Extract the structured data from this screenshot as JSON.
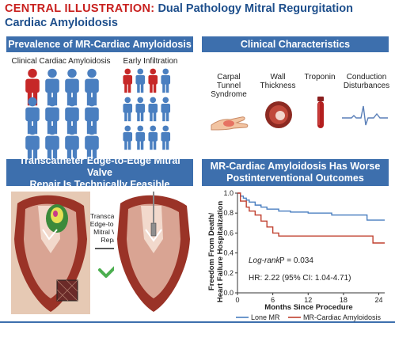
{
  "header": {
    "keyword": "CENTRAL ILLUSTRATION:",
    "title_line1": "Dual Pathology Mitral Regurgitation",
    "title_line2": "Cardiac Amyloidosis"
  },
  "prevalence": {
    "title": "Prevalence of MR-Cardiac Amyloidosis",
    "clinical_label": "Clinical Cardiac Amyloidosis",
    "early_label": "Early Infiltration",
    "colors": {
      "affected": "#c62828",
      "unaffected": "#4a7fc0"
    }
  },
  "clinical": {
    "title": "Clinical Characteristics",
    "items": [
      {
        "label": "Carpal Tunnel Syndrome",
        "icon": "hand-icon"
      },
      {
        "label": "Wall Thickness",
        "icon": "heart-wall-icon"
      },
      {
        "label": "Troponin",
        "icon": "blood-tube-icon"
      },
      {
        "label": "Conduction Disturbances",
        "icon": "ecg-icon"
      }
    ]
  },
  "teer": {
    "title_line1": "Transcatheter Edge-to-Edge Mitral Valve",
    "title_line2": "Repair Is Technically Feasible",
    "arrow_label": "Transcatheter Edge-to-Edge Mitral Valve Repair"
  },
  "outcomes": {
    "title_line1": "MR-Cardiac Amyloidosis Has Worse",
    "title_line2": "Postinterventional Outcomes",
    "ylabel_line1": "Freedom From Death/",
    "ylabel_line2": "Heart Failure Hospitalization",
    "xlabel": "Months Since Procedure",
    "logrank_label": "Log-rank,",
    "logrank_value": "P = 0.034",
    "hr_text": "HR: 2.22 (95% CI: 1.04-4.71)",
    "legend": [
      "Lone MR",
      "MR-Cardiac Amyloidosis"
    ]
  },
  "chart_data": {
    "type": "line",
    "step": true,
    "xlabel": "Months Since Procedure",
    "ylabel": "Freedom From Death/ Heart Failure Hospitalization",
    "xlim": [
      0,
      25
    ],
    "ylim": [
      0,
      1.0
    ],
    "xticks": [
      0,
      6,
      12,
      18,
      24
    ],
    "yticks": [
      0,
      0.2,
      0.4,
      0.6,
      0.8,
      1.0
    ],
    "series": [
      {
        "name": "Lone MR",
        "color": "#4a7fc0",
        "x": [
          0,
          0.5,
          1,
          1.5,
          2,
          3,
          4,
          5,
          7,
          9,
          12,
          16,
          22,
          25
        ],
        "y": [
          1.0,
          0.97,
          0.95,
          0.93,
          0.91,
          0.88,
          0.86,
          0.84,
          0.82,
          0.81,
          0.8,
          0.78,
          0.73,
          0.73
        ]
      },
      {
        "name": "MR-Cardiac Amyloidosis",
        "color": "#c0402f",
        "x": [
          0,
          0.5,
          1.5,
          2,
          3,
          4,
          5,
          6,
          7,
          22,
          23,
          25
        ],
        "y": [
          1.0,
          0.92,
          0.86,
          0.82,
          0.78,
          0.72,
          0.66,
          0.6,
          0.57,
          0.57,
          0.5,
          0.5
        ]
      }
    ]
  }
}
